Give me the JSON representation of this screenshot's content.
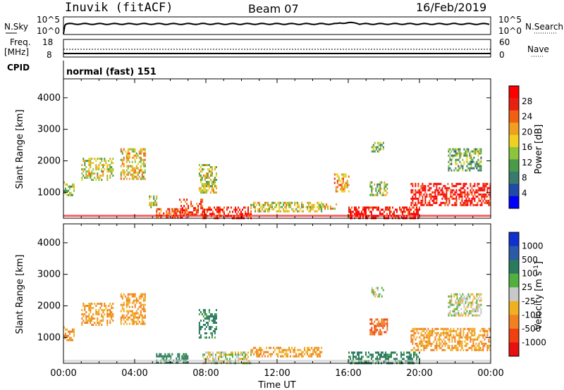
{
  "header": {
    "station": "Inuvik (fitACF)",
    "beam": "Beam 07",
    "date": "16/Feb/2019"
  },
  "panels": {
    "nsky_label": "N.Sky",
    "nsearch_label": "N.Search",
    "nsky_ticks": [
      "10^5",
      "10^0"
    ],
    "nsearch_ticks": [
      "10^5",
      "10^0"
    ],
    "freq_label": "Freq.",
    "freq_unit": "[MHz]",
    "freq_ticks": [
      "18",
      "8"
    ],
    "nave_label": "Nave",
    "nave_ticks": [
      "60",
      "0"
    ],
    "cpid_label": "CPID",
    "cpid_text": "normal (fast) 151"
  },
  "axes": {
    "xlabel": "Time UT",
    "ylabel": "Slant Range [km]",
    "xticks": [
      "00:00",
      "04:00",
      "08:00",
      "12:00",
      "16:00",
      "20:00",
      "00:00"
    ],
    "yticks": [
      "1000",
      "2000",
      "3000",
      "4000"
    ]
  },
  "power_scale": {
    "label": "Power [dB]",
    "ticks": [
      "4",
      "8",
      "12",
      "16",
      "20",
      "24",
      "28"
    ],
    "colors": [
      "#0000ff",
      "#1f4aa8",
      "#3a7a6a",
      "#4a9a4a",
      "#8cc43c",
      "#f0d020",
      "#f0a020",
      "#f06010",
      "#e82010",
      "#ff0000"
    ]
  },
  "velocity_scale": {
    "label": "Velocity [m s^-1]",
    "ticks": [
      "1000",
      "500",
      "100",
      "25",
      "-25",
      "-100",
      "-500",
      "-1000"
    ],
    "colors": [
      "#1030d0",
      "#2a5aa8",
      "#2a7a60",
      "#52b040",
      "#c8c8c8",
      "#f0b020",
      "#f08020",
      "#f04010",
      "#e81010"
    ]
  },
  "chart_data": {
    "type": "heatmap",
    "x_range_hours": [
      0,
      24
    ],
    "y_range_km": [
      180,
      4600
    ],
    "power_echo_regions": [
      {
        "t0": 0.0,
        "t1": 0.6,
        "r0": 900,
        "r1": 1350,
        "value": 14
      },
      {
        "t0": 1.0,
        "t1": 2.8,
        "r0": 1400,
        "r1": 2100,
        "value": 16
      },
      {
        "t0": 3.2,
        "t1": 4.6,
        "r0": 1400,
        "r1": 2400,
        "value": 18
      },
      {
        "t0": 4.8,
        "t1": 5.2,
        "r0": 500,
        "r1": 900,
        "value": 14
      },
      {
        "t0": 5.2,
        "t1": 7.0,
        "r0": 200,
        "r1": 500,
        "value": 24
      },
      {
        "t0": 6.5,
        "t1": 7.8,
        "r0": 300,
        "r1": 800,
        "value": 26
      },
      {
        "t0": 7.6,
        "t1": 8.6,
        "r0": 1000,
        "r1": 1900,
        "value": 16
      },
      {
        "t0": 7.8,
        "t1": 10.5,
        "r0": 200,
        "r1": 550,
        "value": 27
      },
      {
        "t0": 10.5,
        "t1": 14.5,
        "r0": 400,
        "r1": 700,
        "value": 16
      },
      {
        "t0": 14.5,
        "t1": 15.3,
        "r0": 450,
        "r1": 650,
        "value": 18
      },
      {
        "t0": 15.2,
        "t1": 16.0,
        "r0": 1000,
        "r1": 1600,
        "value": 20
      },
      {
        "t0": 16.0,
        "t1": 20.0,
        "r0": 200,
        "r1": 550,
        "value": 28
      },
      {
        "t0": 17.2,
        "t1": 18.2,
        "r0": 900,
        "r1": 1350,
        "value": 14
      },
      {
        "t0": 17.3,
        "t1": 18.0,
        "r0": 2300,
        "r1": 2600,
        "value": 12
      },
      {
        "t0": 19.5,
        "t1": 24.0,
        "r0": 600,
        "r1": 1300,
        "value": 28
      },
      {
        "t0": 21.6,
        "t1": 23.5,
        "r0": 1700,
        "r1": 2400,
        "value": 12
      }
    ],
    "velocity_echo_regions": [
      {
        "t0": 0.0,
        "t1": 0.6,
        "r0": 900,
        "r1": 1350,
        "value": -100
      },
      {
        "t0": 1.0,
        "t1": 2.8,
        "r0": 1400,
        "r1": 2100,
        "value": -100
      },
      {
        "t0": 3.2,
        "t1": 4.6,
        "r0": 1400,
        "r1": 2400,
        "value": -100
      },
      {
        "t0": 5.2,
        "t1": 7.0,
        "r0": 200,
        "r1": 500,
        "value": 100
      },
      {
        "t0": 7.6,
        "t1": 8.6,
        "r0": 1000,
        "r1": 1900,
        "value": 100
      },
      {
        "t0": 7.8,
        "t1": 10.5,
        "r0": 200,
        "r1": 550,
        "value": 0
      },
      {
        "t0": 10.5,
        "t1": 14.5,
        "r0": 400,
        "r1": 700,
        "value": -100
      },
      {
        "t0": 16.0,
        "t1": 20.0,
        "r0": 200,
        "r1": 550,
        "value": 100
      },
      {
        "t0": 17.2,
        "t1": 18.2,
        "r0": 1100,
        "r1": 1600,
        "value": -500
      },
      {
        "t0": 17.3,
        "t1": 18.0,
        "r0": 2300,
        "r1": 2600,
        "value": 0
      },
      {
        "t0": 19.5,
        "t1": 24.0,
        "r0": 600,
        "r1": 1300,
        "value": -100
      },
      {
        "t0": 21.6,
        "t1": 23.5,
        "r0": 1700,
        "r1": 2400,
        "value": 0
      }
    ]
  }
}
